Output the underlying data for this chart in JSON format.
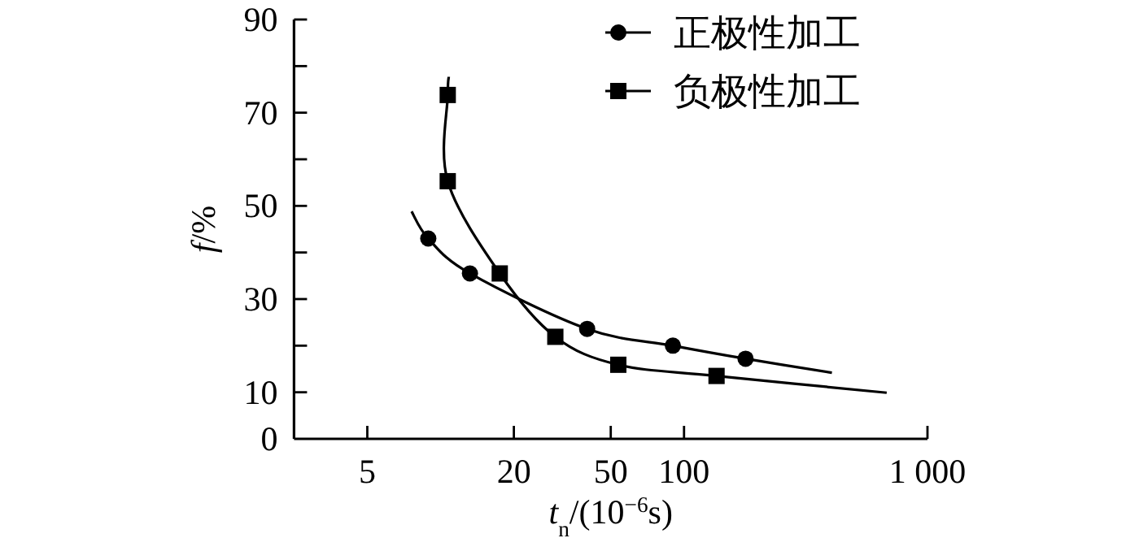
{
  "chart_data": {
    "type": "line",
    "xlabel": "*t*$_{n}$/(10$^{−6}$s)",
    "ylabel": "*f*/%",
    "log": "x",
    "xlim": [
      2.5,
      1000
    ],
    "ylim": [
      0,
      90
    ],
    "xticks": [
      5,
      20,
      50,
      100,
      {
        "value": 1000,
        "label": "1 000"
      }
    ],
    "yticks": [
      0,
      10,
      {
        "value": 20,
        "label": null
      },
      30,
      {
        "value": 40,
        "label": null
      },
      50,
      {
        "value": 60,
        "label": null
      },
      70,
      {
        "value": 80,
        "label": null
      },
      90
    ],
    "legend": "top right",
    "grid": false,
    "line_style": "solid",
    "series": [
      {
        "name": "正极性加工",
        "type": "scatter",
        "marker": "circle",
        "color": "#000000",
        "x": [
          8.9,
          13.2,
          40,
          90,
          179
        ],
        "values": [
          43,
          35.5,
          23.6,
          20,
          17.2
        ]
      },
      {
        "name": "负极性加工",
        "type": "scatter",
        "marker": "square",
        "color": "#000000",
        "x": [
          10.7,
          10.7,
          17.5,
          29.6,
          53.7,
          136
        ],
        "values": [
          73.8,
          55.3,
          35.5,
          21.9,
          15.9,
          13.5
        ]
      },
      {
        "type": "line",
        "marker": "none",
        "color": "#000000",
        "x": [
          7.6,
          8.9,
          13.2,
          40,
          90,
          179,
          405
        ],
        "values": [
          48.8,
          43,
          35.5,
          23.6,
          20,
          17.2,
          14.2
        ]
      },
      {
        "type": "line",
        "marker": "none",
        "color": "#000000",
        "x": [
          10.8,
          10.7,
          10.7,
          17.5,
          29.6,
          53.7,
          136,
          680
        ],
        "values": [
          77.7,
          73.8,
          55.3,
          35.5,
          21.9,
          15.9,
          13.5,
          9.9
        ]
      }
    ]
  }
}
